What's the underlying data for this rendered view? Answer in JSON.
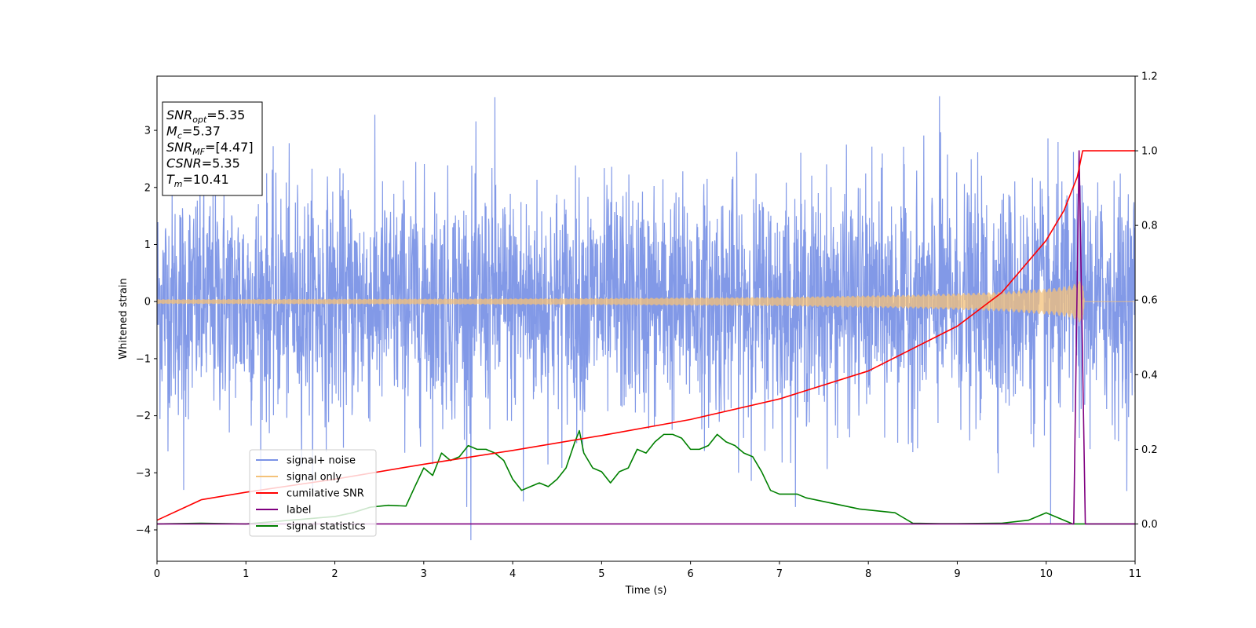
{
  "chart_data": {
    "type": "line",
    "xlabel": "Time (s)",
    "ylabel": "Whitened strain",
    "xlim": [
      0,
      11
    ],
    "ylim_left": [
      -4.55,
      3.95
    ],
    "ylim_right": [
      -0.1,
      1.2
    ],
    "x_ticks": [
      0,
      1,
      2,
      3,
      4,
      5,
      6,
      7,
      8,
      9,
      10,
      11
    ],
    "y_ticks_left": [
      -4,
      -3,
      -2,
      -1,
      0,
      1,
      2,
      3
    ],
    "y_tick_labels_left": [
      "−4",
      "−3",
      "−2",
      "−1",
      "0",
      "1",
      "2",
      "3"
    ],
    "y_ticks_right": [
      0.0,
      0.2,
      0.4,
      0.6,
      0.8,
      1.0,
      1.2
    ],
    "y_tick_labels_right": [
      "0.0",
      "0.2",
      "0.4",
      "0.6",
      "0.8",
      "1.0",
      "1.2"
    ],
    "info_box": [
      {
        "main": "SNR",
        "sub": "opt",
        "value": "=5.35"
      },
      {
        "main": "M",
        "sub": "c",
        "value": "=5.37"
      },
      {
        "main": "SNR",
        "sub": "MF",
        "value": "=[4.47]"
      },
      {
        "main": "CSNR",
        "sub": "",
        "value": "=5.35"
      },
      {
        "main": "T",
        "sub": "m",
        "value": "=10.41"
      }
    ],
    "legend": {
      "location": "lower-left",
      "entries": [
        {
          "label": "signal+ noise",
          "color": "#7b93e6"
        },
        {
          "label": "signal only",
          "color": "#f4c27a"
        },
        {
          "label": "cumilative SNR",
          "color": "#ff0000"
        },
        {
          "label": "label",
          "color": "#800080"
        },
        {
          "label": "signal statistics",
          "color": "#008000"
        }
      ]
    },
    "series": [
      {
        "name": "signal+ noise",
        "axis": "left",
        "color": "#7b93e6",
        "x_range": [
          0,
          11
        ],
        "envelope_upper_typical": 2.6,
        "envelope_lower_typical": -2.4,
        "peaks": [
          [
            0.3,
            -3.3
          ],
          [
            3.53,
            -4.18
          ],
          [
            4.12,
            -3.5
          ],
          [
            3.8,
            3.58
          ],
          [
            8.8,
            3.6
          ],
          [
            10.05,
            -3.9
          ]
        ]
      },
      {
        "name": "signal only",
        "axis": "left",
        "color": "#f4c27a",
        "amplitude": {
          "x": [
            0,
            3,
            5,
            7,
            8.5,
            9.5,
            10.1,
            10.3,
            10.41,
            10.43,
            11
          ],
          "y": [
            0.04,
            0.05,
            0.06,
            0.08,
            0.12,
            0.17,
            0.24,
            0.29,
            0.4,
            0.0,
            0.0
          ]
        }
      },
      {
        "name": "cumilative SNR",
        "axis": "right",
        "color": "#ff0000",
        "x": [
          0,
          0.5,
          1,
          2,
          3,
          4,
          5,
          6,
          7,
          8,
          9,
          9.5,
          10,
          10.2,
          10.35,
          10.41,
          11
        ],
        "y": [
          0.01,
          0.065,
          0.085,
          0.12,
          0.16,
          0.197,
          0.237,
          0.28,
          0.335,
          0.41,
          0.53,
          0.62,
          0.76,
          0.84,
          0.93,
          1.0,
          1.0
        ]
      },
      {
        "name": "label",
        "axis": "right",
        "color": "#800080",
        "x": [
          0,
          10.31,
          10.37,
          10.44,
          11
        ],
        "y": [
          0,
          0,
          1.0,
          0,
          0
        ]
      },
      {
        "name": "signal statistics",
        "axis": "right",
        "color": "#008000",
        "x": [
          0,
          0.5,
          1,
          1.5,
          2,
          2.2,
          2.4,
          2.6,
          2.8,
          2.9,
          3.0,
          3.1,
          3.2,
          3.3,
          3.4,
          3.5,
          3.6,
          3.7,
          3.8,
          3.9,
          4.0,
          4.1,
          4.2,
          4.3,
          4.4,
          4.5,
          4.6,
          4.7,
          4.75,
          4.8,
          4.9,
          5.0,
          5.1,
          5.2,
          5.3,
          5.4,
          5.5,
          5.6,
          5.7,
          5.8,
          5.9,
          6.0,
          6.1,
          6.2,
          6.3,
          6.4,
          6.5,
          6.6,
          6.7,
          6.8,
          6.9,
          7.0,
          7.2,
          7.3,
          7.5,
          7.7,
          7.9,
          8.1,
          8.3,
          8.5,
          8.8,
          9.0,
          9.5,
          9.8,
          10.0,
          10.3,
          11
        ],
        "y": [
          0,
          0.002,
          0.0,
          0.01,
          0.02,
          0.03,
          0.045,
          0.05,
          0.048,
          0.1,
          0.15,
          0.13,
          0.19,
          0.17,
          0.18,
          0.21,
          0.2,
          0.2,
          0.19,
          0.17,
          0.12,
          0.09,
          0.1,
          0.11,
          0.1,
          0.12,
          0.15,
          0.22,
          0.25,
          0.19,
          0.15,
          0.14,
          0.11,
          0.14,
          0.15,
          0.2,
          0.19,
          0.22,
          0.24,
          0.24,
          0.23,
          0.2,
          0.2,
          0.21,
          0.24,
          0.22,
          0.21,
          0.19,
          0.18,
          0.14,
          0.09,
          0.08,
          0.08,
          0.07,
          0.06,
          0.05,
          0.04,
          0.035,
          0.03,
          0.002,
          0.001,
          0.001,
          0.002,
          0.01,
          0.03,
          0.0,
          0.0
        ]
      }
    ]
  }
}
